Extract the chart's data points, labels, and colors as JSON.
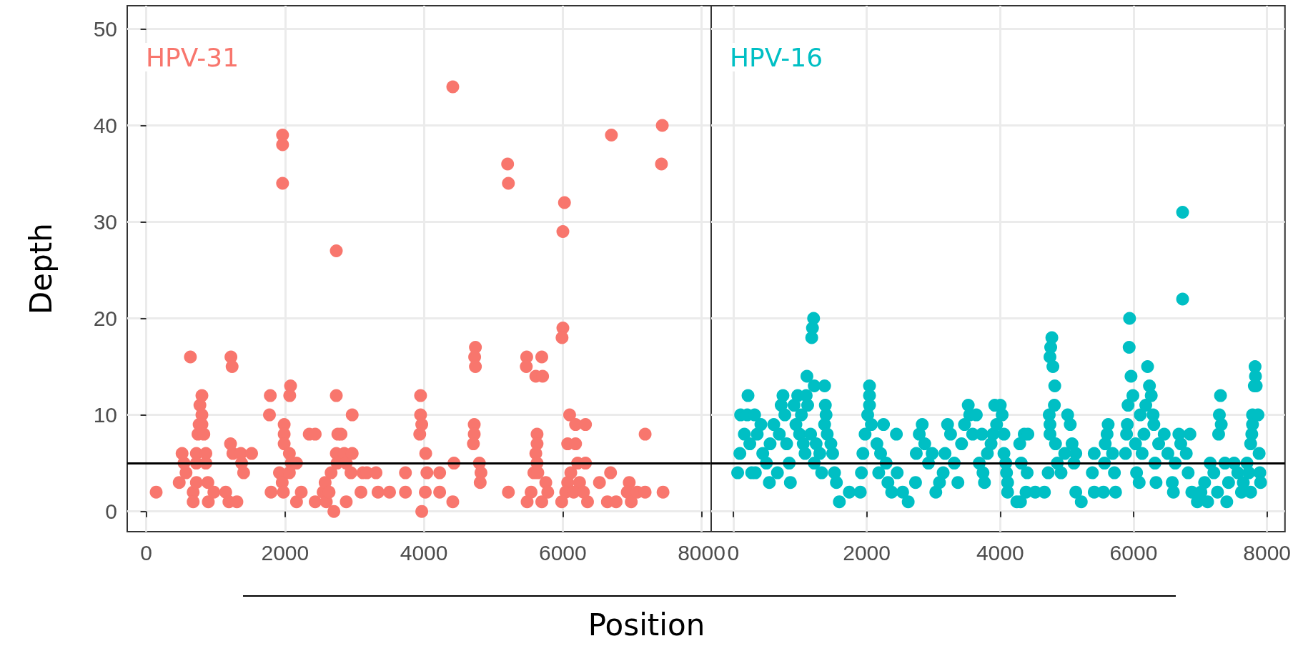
{
  "chart_data": [
    {
      "type": "scatter",
      "ylabel": "Depth",
      "xlabel": "Position",
      "marker": "circle",
      "grid": true,
      "xlim": [
        -274,
        8365
      ],
      "xticks": [
        0,
        2000,
        4000,
        6000,
        8000
      ],
      "ylim": [
        -2.1,
        52.4
      ],
      "yticks": [
        0,
        10,
        20,
        30,
        40,
        50
      ],
      "ref_lines": [
        {
          "axis": "y",
          "value": 5,
          "color": "#000000"
        }
      ],
      "series": [
        {
          "name": "HPV-31",
          "color": "#f8766d",
          "x": [
            143,
            636,
            475,
            516,
            544,
            573,
            676,
            676,
            722,
            722,
            722,
            745,
            762,
            773,
            802,
            802,
            802,
            830,
            859,
            859,
            888,
            894,
            974,
            1145,
            1191,
            1306,
            1220,
            1237,
            1214,
            1248,
            1363,
            1374,
            1403,
            1518,
            1775,
            1787,
            1798,
            1964,
            1964,
            1964,
            1987,
            1987,
            1987,
            1919,
            1959,
            1976,
            2062,
            2079,
            2067,
            2090,
            2165,
            2062,
            2165,
            2233,
            2348,
            2434,
            2434,
            2548,
            2577,
            2594,
            2634,
            2663,
            2703,
            2738,
            2738,
            2760,
            2806,
            2738,
            2749,
            2852,
            2881,
            2881,
            2967,
            2967,
            2949,
            3093,
            3121,
            3178,
            3310,
            3339,
            3505,
            3734,
            3734,
            3952,
            3952,
            3969,
            3940,
            4026,
            4043,
            4020,
            3969,
            4227,
            4227,
            4416,
            4433,
            4416,
            4742,
            4731,
            4742,
            4725,
            4725,
            4713,
            4799,
            4822,
            4811,
            5206,
            5217,
            5217,
            5481,
            5475,
            5698,
            5612,
            5710,
            5630,
            5630,
            5612,
            5630,
            5584,
            5641,
            5544,
            5487,
            5698,
            5756,
            5784,
            6025,
            6002,
            6002,
            5990,
            6099,
            6185,
            6328,
            6071,
            6185,
            6214,
            6328,
            6116,
            6071,
            6242,
            6042,
            6157,
            6299,
            5985,
            6357,
            6529,
            6689,
            6701,
            6643,
            6769,
            6958,
            6929,
            6987,
            7073,
            7187,
            7187,
            7434,
            7422,
            7445
          ],
          "values": [
            2,
            16,
            3,
            6,
            5,
            4,
            2,
            1,
            6,
            5,
            3,
            8,
            9,
            11,
            12,
            10,
            9,
            8,
            6,
            5,
            3,
            1,
            2,
            2,
            1,
            1,
            16,
            15,
            7,
            6,
            6,
            5,
            4,
            6,
            10,
            12,
            2,
            39,
            38,
            34,
            9,
            8,
            7,
            4,
            3,
            2,
            6,
            13,
            12,
            5,
            5,
            4,
            1,
            2,
            8,
            8,
            1,
            2,
            3,
            1,
            2,
            4,
            0,
            27,
            12,
            8,
            8,
            6,
            5,
            6,
            5,
            1,
            10,
            6,
            4,
            2,
            4,
            4,
            4,
            2,
            2,
            4,
            2,
            12,
            10,
            9,
            8,
            6,
            4,
            2,
            0,
            4,
            2,
            44,
            5,
            1,
            17,
            16,
            15,
            9,
            8,
            7,
            5,
            4,
            3,
            36,
            34,
            2,
            16,
            15,
            16,
            14,
            14,
            8,
            7,
            6,
            5,
            4,
            4,
            2,
            1,
            1,
            3,
            2,
            32,
            29,
            19,
            18,
            10,
            9,
            9,
            7,
            7,
            5,
            5,
            4,
            3,
            3,
            2,
            2,
            2,
            1,
            1,
            3,
            4,
            39,
            1,
            1,
            3,
            2,
            1,
            2,
            2,
            8,
            40,
            36,
            2
          ]
        }
      ]
    },
    {
      "type": "scatter",
      "marker": "circle",
      "grid": true,
      "tick_labels": "x",
      "xlim": [
        -331,
        8269
      ],
      "xticks": [
        0,
        2000,
        4000,
        6000,
        8000
      ],
      "ylim": [
        -2.1,
        52.4
      ],
      "yticks": [
        0,
        10,
        20,
        30,
        40,
        50
      ],
      "ref_lines": [
        {
          "axis": "y",
          "value": 5,
          "color": "#000000"
        }
      ],
      "series": [
        {
          "name": "HPV-16",
          "color": "#00bfc4",
          "x": [
            66,
            99,
            110,
            166,
            221,
            210,
            248,
            276,
            320,
            331,
            359,
            414,
            442,
            497,
            541,
            552,
            607,
            662,
            690,
            718,
            745,
            773,
            800,
            839,
            856,
            911,
            939,
            966,
            994,
            1021,
            1049,
            1076,
            1104,
            1093,
            1115,
            1159,
            1176,
            1187,
            1204,
            1214,
            1242,
            1214,
            1297,
            1325,
            1369,
            1380,
            1391,
            1369,
            1408,
            1463,
            1490,
            1518,
            1546,
            1590,
            1739,
            1904,
            1921,
            1943,
            1976,
            2015,
            2042,
            2042,
            2042,
            2070,
            2153,
            2180,
            2208,
            2252,
            2291,
            2318,
            2374,
            2445,
            2457,
            2539,
            2622,
            2732,
            2743,
            2788,
            2832,
            2870,
            2926,
            2981,
            3036,
            3091,
            3146,
            3174,
            3212,
            3257,
            3312,
            3367,
            3422,
            3466,
            3522,
            3544,
            3588,
            3643,
            3687,
            3726,
            3743,
            3765,
            3809,
            3864,
            3892,
            3919,
            3947,
            4002,
            4030,
            4057,
            4057,
            4085,
            4096,
            4112,
            4112,
            4250,
            4305,
            4294,
            4316,
            4361,
            4416,
            4405,
            4388,
            4526,
            4664,
            4720,
            4747,
            4736,
            4747,
            4775,
            4758,
            4747,
            4791,
            4819,
            4813,
            4830,
            4857,
            4913,
            4968,
            5012,
            5051,
            5078,
            5106,
            5134,
            5134,
            5216,
            5382,
            5410,
            5410,
            5548,
            5564,
            5575,
            5603,
            5619,
            5685,
            5713,
            5730,
            5879,
            5895,
            5917,
            5906,
            5934,
            5940,
            5962,
            5990,
            6029,
            6045,
            6084,
            6100,
            6128,
            6155,
            6183,
            6210,
            6238,
            6265,
            6293,
            6304,
            6321,
            6337,
            6376,
            6459,
            6514,
            6580,
            6597,
            6624,
            6679,
            6707,
            6735,
            6735,
            6790,
            6818,
            6845,
            6873,
            6956,
            7010,
            7065,
            7110,
            7148,
            7203,
            7258,
            7275,
            7286,
            7303,
            7314,
            7369,
            7397,
            7424,
            7507,
            7562,
            7617,
            7645,
            7700,
            7728,
            7755,
            7755,
            7772,
            7783,
            7783,
            7810,
            7821,
            7827,
            7838,
            7865,
            7882,
            7893,
            7904
          ],
          "values": [
            4,
            6,
            10,
            8,
            12,
            10,
            7,
            4,
            10,
            4,
            8,
            9,
            6,
            5,
            3,
            7,
            9,
            4,
            8,
            11,
            12,
            10,
            7,
            5,
            3,
            11,
            9,
            12,
            8,
            10,
            7,
            6,
            14,
            12,
            11,
            8,
            18,
            19,
            20,
            13,
            7,
            5,
            6,
            4,
            13,
            11,
            10,
            9,
            8,
            7,
            6,
            4,
            3,
            1,
            2,
            2,
            4,
            6,
            8,
            10,
            11,
            13,
            12,
            9,
            7,
            4,
            6,
            9,
            5,
            3,
            2,
            8,
            4,
            2,
            1,
            3,
            6,
            8,
            9,
            7,
            5,
            6,
            2,
            3,
            4,
            6,
            9,
            8,
            5,
            3,
            7,
            9,
            11,
            10,
            8,
            10,
            5,
            8,
            4,
            3,
            6,
            7,
            8,
            11,
            9,
            11,
            10,
            8,
            6,
            5,
            4,
            3,
            2,
            1,
            1,
            7,
            5,
            8,
            8,
            4,
            2,
            2,
            2,
            4,
            8,
            10,
            9,
            18,
            17,
            16,
            15,
            13,
            11,
            7,
            5,
            4,
            6,
            10,
            9,
            7,
            5,
            6,
            2,
            1,
            4,
            6,
            2,
            2,
            5,
            7,
            8,
            9,
            6,
            4,
            2,
            6,
            8,
            11,
            9,
            17,
            20,
            14,
            12,
            7,
            4,
            3,
            10,
            6,
            8,
            11,
            15,
            13,
            12,
            10,
            9,
            5,
            3,
            7,
            8,
            6,
            3,
            2,
            5,
            8,
            7,
            31,
            22,
            6,
            4,
            8,
            2,
            1,
            2,
            3,
            1,
            5,
            4,
            2,
            8,
            10,
            12,
            9,
            5,
            1,
            3,
            5,
            4,
            2,
            3,
            5,
            4,
            2,
            7,
            8,
            9,
            10,
            13,
            15,
            14,
            13,
            10,
            6,
            4,
            3
          ]
        }
      ]
    }
  ]
}
